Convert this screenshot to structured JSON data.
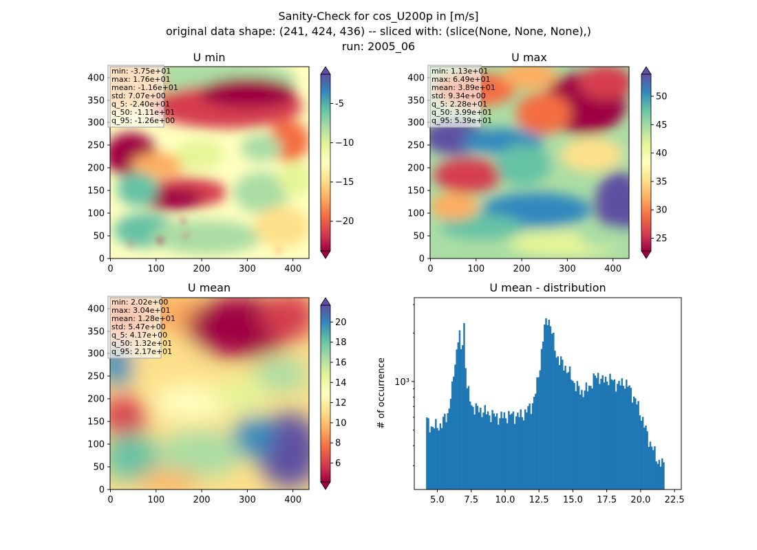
{
  "figure": {
    "title_lines": [
      "Sanity-Check for cos_U200p in [m/s]",
      "original data shape: (241, 424, 436) -- sliced with: (slice(None, None, None),)",
      "run: 2005_06"
    ]
  },
  "chart_data": [
    {
      "type": "heatmap",
      "title": "U min",
      "colormap": "Spectral",
      "x_ticks": [
        "0",
        "100",
        "200",
        "300",
        "400"
      ],
      "y_ticks": [
        "0",
        "50",
        "100",
        "150",
        "200",
        "250",
        "300",
        "350",
        "400"
      ],
      "xlim": [
        0,
        436
      ],
      "ylim": [
        0,
        424
      ],
      "colorbar": {
        "range": [
          -23.8,
          -1.3
        ],
        "ticks": [
          "-5",
          "−10",
          "−15",
          "−20"
        ],
        "tick_values": [
          -5,
          -10,
          -15,
          -20
        ],
        "extend": "both"
      },
      "stats": [
        "min: -3.75e+01",
        "max: 1.76e+01",
        "mean: -1.16e+01",
        "std: 7.07e+00",
        "q_5: -2.40e+01",
        "q_50: -1.11e+01",
        "q_95: -1.26e+00"
      ]
    },
    {
      "type": "heatmap",
      "title": "U max",
      "colormap": "Spectral",
      "x_ticks": [
        "0",
        "100",
        "200",
        "300",
        "400"
      ],
      "y_ticks": [
        "0",
        "50",
        "100",
        "150",
        "200",
        "250",
        "300",
        "350",
        "400"
      ],
      "xlim": [
        0,
        436
      ],
      "ylim": [
        0,
        424
      ],
      "colorbar": {
        "range": [
          22.8,
          53.9
        ],
        "ticks": [
          "25",
          "30",
          "35",
          "40",
          "45",
          "50"
        ],
        "tick_values": [
          25,
          30,
          35,
          40,
          45,
          50
        ],
        "extend": "both"
      },
      "stats": [
        "min: 1.13e+01",
        "max: 6.49e+01",
        "mean: 3.89e+01",
        "std: 9.34e+00",
        "q_5: 2.28e+01",
        "q_50: 3.99e+01",
        "q_95: 5.39e+01"
      ]
    },
    {
      "type": "heatmap",
      "title": "U mean",
      "colormap": "Spectral",
      "x_ticks": [
        "0",
        "100",
        "200",
        "300",
        "400"
      ],
      "y_ticks": [
        "0",
        "50",
        "100",
        "150",
        "200",
        "250",
        "300",
        "350",
        "400"
      ],
      "xlim": [
        0,
        436
      ],
      "ylim": [
        0,
        424
      ],
      "colorbar": {
        "range": [
          4.17,
          21.7
        ],
        "ticks": [
          "6",
          "8",
          "10",
          "12",
          "14",
          "16",
          "18",
          "20"
        ],
        "tick_values": [
          6,
          8,
          10,
          12,
          14,
          16,
          18,
          20
        ],
        "extend": "both"
      },
      "stats": [
        "min: 2.02e+00",
        "max: 3.04e+01",
        "mean: 1.28e+01",
        "std: 5.47e+00",
        "q_5: 4.17e+00",
        "q_50: 1.32e+01",
        "q_95: 2.17e+01"
      ]
    },
    {
      "type": "bar",
      "title": "U mean - distribution",
      "ylabel": "# of occurrence",
      "yscale": "log",
      "color": "#1f77b4",
      "xlim": [
        3.3,
        23.0
      ],
      "ylim_log10": [
        2.33,
        3.52
      ],
      "x_ticks": [
        5.0,
        7.5,
        10.0,
        12.5,
        15.0,
        17.5,
        20.0,
        22.5
      ],
      "x_tick_labels": [
        "5.0",
        "7.5",
        "10.0",
        "12.5",
        "15.0",
        "17.5",
        "20.0",
        "22.5"
      ],
      "y_ticks": [
        1000
      ],
      "y_tick_labels": [
        "10³"
      ],
      "bins": {
        "start": 4.17,
        "end": 21.75
      },
      "profile_x": [
        4.17,
        4.4,
        4.7,
        5.3,
        5.8,
        6.1,
        6.4,
        6.6,
        6.8,
        6.95,
        7.05,
        7.2,
        7.5,
        7.8,
        8.3,
        9.0,
        9.6,
        10.0,
        10.5,
        11.0,
        11.5,
        12.0,
        12.3,
        12.6,
        12.85,
        13.1,
        13.3,
        13.5,
        13.75,
        14.0,
        14.4,
        14.8,
        15.2,
        15.6,
        16.1,
        16.6,
        16.9,
        17.2,
        17.6,
        18.0,
        18.4,
        18.8,
        19.2,
        19.5,
        19.8,
        20.1,
        20.3,
        20.6,
        20.9,
        21.2,
        21.5,
        21.75
      ],
      "profile_y": [
        580,
        540,
        520,
        540,
        640,
        900,
        1500,
        2100,
        1300,
        2500,
        1400,
        900,
        720,
        680,
        660,
        620,
        600,
        610,
        620,
        610,
        640,
        720,
        880,
        1300,
        2000,
        2500,
        2350,
        1900,
        1500,
        1350,
        1250,
        1100,
        950,
        860,
        900,
        1050,
        1100,
        1000,
        1050,
        1000,
        950,
        1000,
        900,
        800,
        700,
        600,
        520,
        440,
        380,
        330,
        310,
        300
      ]
    }
  ]
}
